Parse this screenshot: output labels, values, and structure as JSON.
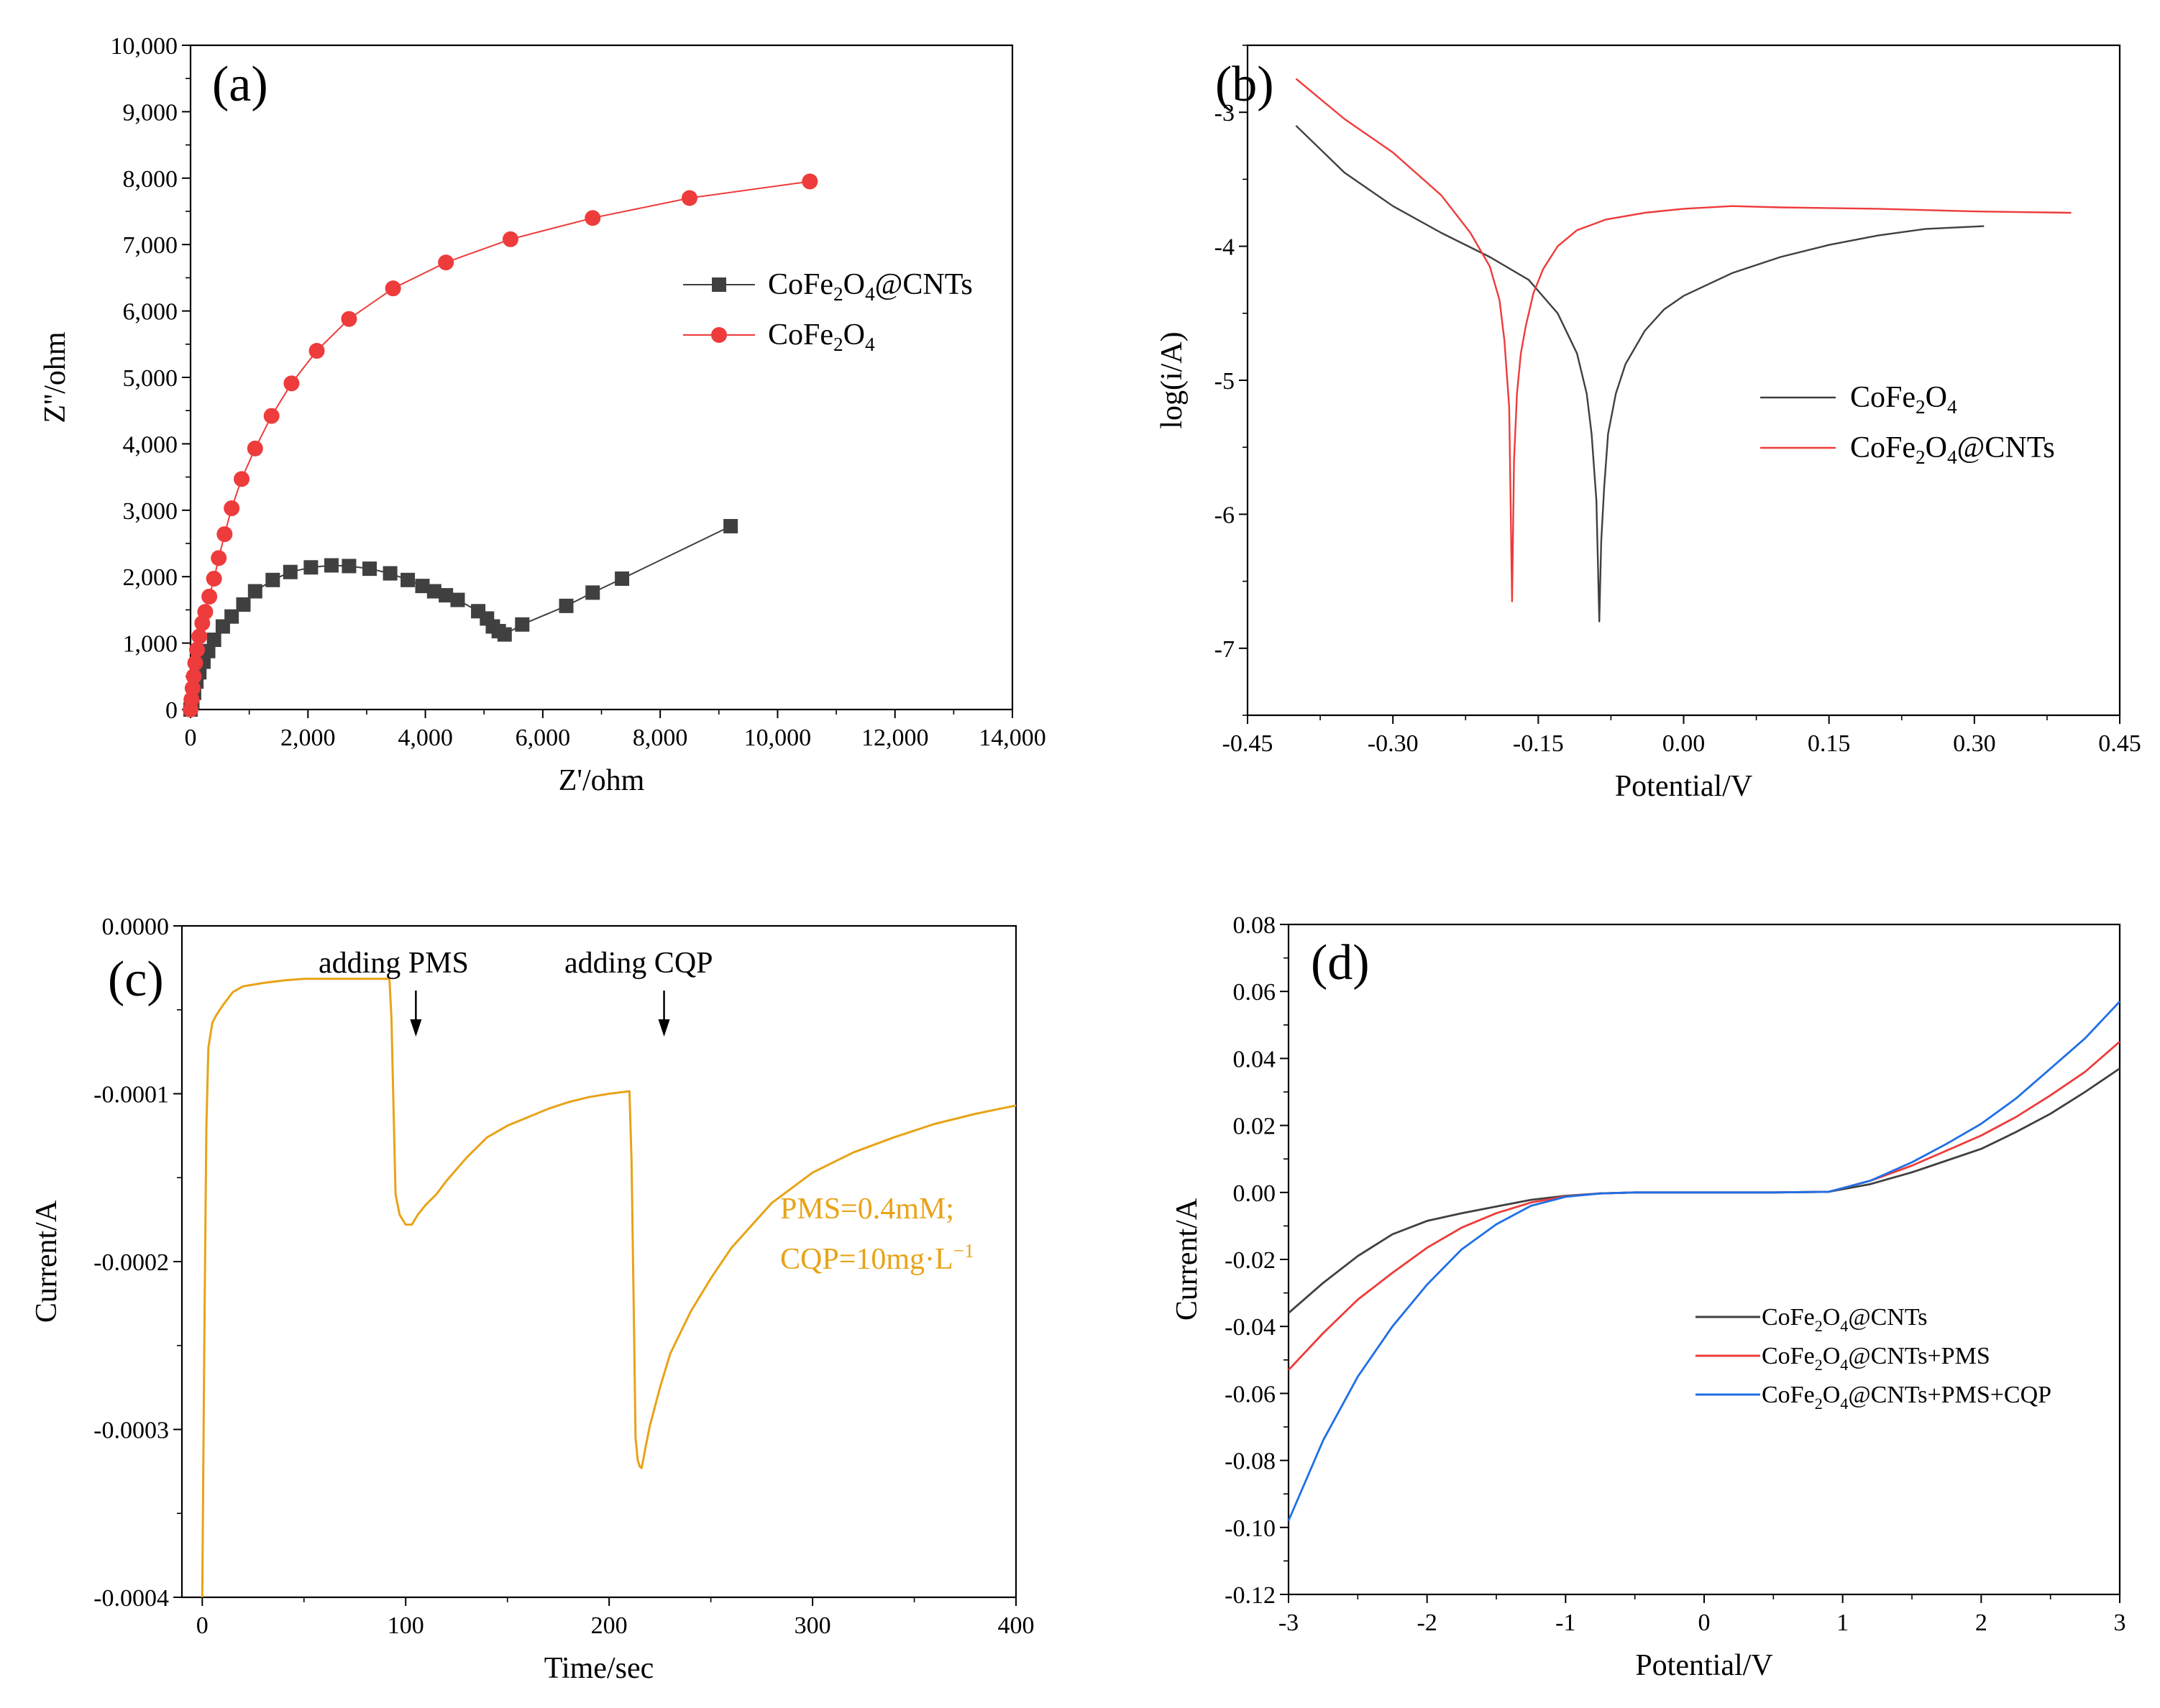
{
  "chart_data": [
    {
      "id": "a",
      "type": "scatter",
      "panel_label": "(a)",
      "xlabel": "Z'/ohm",
      "ylabel": "Z''/ohm",
      "xlim": [
        0,
        14000
      ],
      "ylim": [
        0,
        10000
      ],
      "x_ticks": [
        "0",
        "2,000",
        "4,000",
        "6,000",
        "8,000",
        "10,000",
        "12,000",
        "14,000"
      ],
      "y_ticks": [
        "0",
        "1,000",
        "2,000",
        "3,000",
        "4,000",
        "5,000",
        "6,000",
        "7,000",
        "8,000",
        "9,000",
        "10,000"
      ],
      "legend_position": "upper-right",
      "series": [
        {
          "name": "CoFe2O4@CNTs",
          "legend_main": "CoFe",
          "legend_sub1": "2",
          "legend_mid": "O",
          "legend_sub2": "4",
          "legend_tail": "@CNTs",
          "color": "#404040",
          "marker": "square",
          "x": [
            0,
            30,
            60,
            100,
            150,
            220,
            300,
            400,
            550,
            700,
            900,
            1100,
            1400,
            1700,
            2050,
            2400,
            2700,
            3050,
            3400,
            3700,
            3950,
            4150,
            4350,
            4550,
            4900,
            5050,
            5150,
            5250,
            5350,
            5650,
            6400,
            6850,
            7350,
            9200
          ],
          "y": [
            0,
            120,
            250,
            420,
            560,
            720,
            880,
            1050,
            1250,
            1400,
            1580,
            1780,
            1950,
            2070,
            2140,
            2170,
            2160,
            2120,
            2050,
            1950,
            1860,
            1780,
            1720,
            1650,
            1480,
            1370,
            1250,
            1180,
            1130,
            1280,
            1560,
            1760,
            1970,
            2760
          ]
        },
        {
          "name": "CoFe2O4",
          "legend_main": "CoFe",
          "legend_sub1": "2",
          "legend_mid": "O",
          "legend_sub2": "4",
          "legend_tail": "",
          "color": "#EE3B3B",
          "marker": "circle",
          "x": [
            0,
            15,
            35,
            55,
            80,
            110,
            150,
            200,
            250,
            320,
            400,
            480,
            580,
            700,
            870,
            1100,
            1380,
            1720,
            2150,
            2700,
            3450,
            4350,
            5450,
            6850,
            8500,
            10550
          ],
          "y": [
            0,
            150,
            320,
            500,
            700,
            900,
            1100,
            1300,
            1470,
            1700,
            1970,
            2280,
            2640,
            3030,
            3470,
            3930,
            4420,
            4910,
            5400,
            5880,
            6340,
            6730,
            7080,
            7400,
            7700,
            7950
          ]
        }
      ]
    },
    {
      "id": "b",
      "type": "line",
      "panel_label": "(b)",
      "xlabel": "Potential/V",
      "ylabel": "log(i/A)",
      "xlim": [
        -0.45,
        0.45
      ],
      "ylim": [
        -7.5,
        -2.5
      ],
      "x_ticks": [
        "-0.45",
        "-0.30",
        "-0.15",
        "0.00",
        "0.15",
        "0.30",
        "0.45"
      ],
      "y_ticks": [
        "-3",
        "-4",
        "-5",
        "-6",
        "-7"
      ],
      "legend_position": "right",
      "series": [
        {
          "name": "CoFe2O4",
          "legend_main": "CoFe",
          "legend_sub1": "2",
          "legend_mid": "O",
          "legend_sub2": "4",
          "legend_tail": "",
          "color": "#404040",
          "x": [
            -0.4,
            -0.35,
            -0.3,
            -0.25,
            -0.2,
            -0.16,
            -0.13,
            -0.11,
            -0.1,
            -0.095,
            -0.09,
            -0.087,
            -0.085,
            -0.082,
            -0.078,
            -0.07,
            -0.06,
            -0.04,
            -0.02,
            0.0,
            0.05,
            0.1,
            0.15,
            0.2,
            0.25,
            0.31
          ],
          "y": [
            -3.1,
            -3.45,
            -3.7,
            -3.9,
            -4.08,
            -4.25,
            -4.5,
            -4.8,
            -5.1,
            -5.4,
            -5.9,
            -6.8,
            -6.2,
            -5.8,
            -5.4,
            -5.1,
            -4.88,
            -4.63,
            -4.47,
            -4.37,
            -4.2,
            -4.08,
            -3.99,
            -3.92,
            -3.87,
            -3.85
          ]
        },
        {
          "name": "CoFe2O4@CNTs",
          "legend_main": "CoFe",
          "legend_sub1": "2",
          "legend_mid": "O",
          "legend_sub2": "4",
          "legend_tail": "@CNTs",
          "color": "#EE3B3B",
          "x": [
            -0.4,
            -0.35,
            -0.3,
            -0.25,
            -0.22,
            -0.2,
            -0.19,
            -0.185,
            -0.18,
            -0.177,
            -0.175,
            -0.172,
            -0.168,
            -0.163,
            -0.155,
            -0.145,
            -0.13,
            -0.11,
            -0.08,
            -0.04,
            0.0,
            0.05,
            0.1,
            0.2,
            0.3,
            0.4
          ],
          "y": [
            -2.75,
            -3.05,
            -3.3,
            -3.62,
            -3.9,
            -4.15,
            -4.4,
            -4.7,
            -5.2,
            -6.65,
            -5.6,
            -5.1,
            -4.8,
            -4.6,
            -4.35,
            -4.17,
            -4.0,
            -3.88,
            -3.8,
            -3.75,
            -3.72,
            -3.7,
            -3.71,
            -3.72,
            -3.74,
            -3.75
          ]
        }
      ]
    },
    {
      "id": "c",
      "type": "line",
      "panel_label": "(c)",
      "xlabel": "Time/sec",
      "ylabel": "Current/A",
      "xlim": [
        -10,
        400
      ],
      "ylim": [
        -0.0004,
        0.0
      ],
      "x_ticks": [
        "0",
        "100",
        "200",
        "300",
        "400"
      ],
      "y_ticks": [
        "0.0000",
        "-0.0001",
        "-0.0002",
        "-0.0003",
        "-0.0004"
      ],
      "annotations": {
        "pms_label": "adding PMS",
        "cqp_label": "adding CQP",
        "pms_arrow_x": 105,
        "cqp_arrow_x": 227,
        "cond_line1": "PMS=0.4mM;",
        "cond_line2_main": "CQP=10mg·L",
        "cond_line2_sup": "−1"
      },
      "series": [
        {
          "name": "current",
          "color": "#E8A317",
          "x": [
            0,
            1,
            2,
            3,
            5,
            7,
            10,
            15,
            20,
            30,
            40,
            50,
            60,
            70,
            80,
            92,
            93,
            95,
            97,
            100,
            103,
            106,
            110,
            115,
            120,
            130,
            140,
            150,
            160,
            170,
            180,
            190,
            200,
            210,
            211,
            212,
            213,
            214,
            215,
            216,
            218,
            220,
            225,
            230,
            240,
            250,
            260,
            280,
            300,
            320,
            340,
            360,
            380,
            400
          ],
          "y": [
            -0.0004,
            -0.00025,
            -0.00012,
            -7.25e-05,
            -5.75e-05,
            -5.3e-05,
            -4.75e-05,
            -3.95e-05,
            -3.6e-05,
            -3.4e-05,
            -3.25e-05,
            -3.15e-05,
            -3.15e-05,
            -3.15e-05,
            -3.15e-05,
            -3.15e-05,
            -5.5e-05,
            -0.00016,
            -0.000172,
            -0.000178,
            -0.000178,
            -0.000172,
            -0.000166,
            -0.00016,
            -0.000152,
            -0.000138,
            -0.000126,
            -0.000119,
            -0.000114,
            -0.000109,
            -0.000105,
            -0.000102,
            -0.0001,
            -9.85e-05,
            -0.00014,
            -0.00022,
            -0.000305,
            -0.000318,
            -0.000322,
            -0.000323,
            -0.00031,
            -0.000298,
            -0.000275,
            -0.000255,
            -0.00023,
            -0.00021,
            -0.000192,
            -0.000165,
            -0.000147,
            -0.000135,
            -0.000126,
            -0.000118,
            -0.000112,
            -0.000107
          ]
        }
      ]
    },
    {
      "id": "d",
      "type": "line",
      "panel_label": "(d)",
      "xlabel": "Potential/V",
      "ylabel": "Current/A",
      "xlim": [
        -3,
        3
      ],
      "ylim": [
        -0.12,
        0.08
      ],
      "x_ticks": [
        "-3",
        "-2",
        "-1",
        "0",
        "1",
        "2",
        "3"
      ],
      "y_ticks": [
        "0.08",
        "0.06",
        "0.04",
        "0.02",
        "0.00",
        "-0.02",
        "-0.04",
        "-0.06",
        "-0.08",
        "-0.10",
        "-0.12"
      ],
      "legend_position": "lower-right",
      "series": [
        {
          "name": "CoFe2O4@CNTs",
          "legend_main": "CoFe",
          "legend_sub1": "2",
          "legend_mid": "O",
          "legend_sub2": "4",
          "legend_tail": "@CNTs",
          "color": "#404040",
          "x": [
            -3,
            -2.75,
            -2.5,
            -2.25,
            -2,
            -1.75,
            -1.5,
            -1.25,
            -1,
            -0.75,
            -0.5,
            0,
            0.5,
            0.9,
            1.2,
            1.5,
            1.75,
            2,
            2.25,
            2.5,
            2.75,
            3
          ],
          "y": [
            -0.036,
            -0.027,
            -0.019,
            -0.0125,
            -0.0085,
            -0.0062,
            -0.0042,
            -0.0022,
            -0.001,
            -0.0003,
            0,
            0,
            0,
            0.0002,
            0.0025,
            0.006,
            0.0095,
            0.013,
            0.018,
            0.0235,
            0.03,
            0.037
          ]
        },
        {
          "name": "CoFe2O4@CNTs+PMS",
          "legend_main": "CoFe",
          "legend_sub1": "2",
          "legend_mid": "O",
          "legend_sub2": "4",
          "legend_tail": "@CNTs+PMS",
          "color": "#EE3B3B",
          "x": [
            -3,
            -2.75,
            -2.5,
            -2.25,
            -2,
            -1.75,
            -1.5,
            -1.25,
            -1,
            -0.75,
            -0.5,
            0,
            0.5,
            0.9,
            1.2,
            1.5,
            1.75,
            2,
            2.25,
            2.5,
            2.75,
            3
          ],
          "y": [
            -0.053,
            -0.042,
            -0.032,
            -0.024,
            -0.0165,
            -0.0105,
            -0.0062,
            -0.003,
            -0.0012,
            -0.0003,
            0,
            0,
            0,
            0.0002,
            0.0035,
            0.008,
            0.0125,
            0.017,
            0.0225,
            0.029,
            0.036,
            0.045
          ]
        },
        {
          "name": "CoFe2O4@CNTs+PMS+CQP",
          "legend_main": "CoFe",
          "legend_sub1": "2",
          "legend_mid": "O",
          "legend_sub2": "4",
          "legend_tail": "@CNTs+PMS+CQP",
          "color": "#1F6FE5",
          "x": [
            -3,
            -2.75,
            -2.5,
            -2.25,
            -2,
            -1.75,
            -1.5,
            -1.25,
            -1,
            -0.75,
            -0.5,
            0,
            0.5,
            0.9,
            1.2,
            1.5,
            1.75,
            2,
            2.25,
            2.5,
            2.75,
            3
          ],
          "y": [
            -0.098,
            -0.074,
            -0.055,
            -0.04,
            -0.0275,
            -0.017,
            -0.0095,
            -0.004,
            -0.0013,
            -0.0003,
            0,
            0,
            0,
            0.0002,
            0.0035,
            0.009,
            0.0145,
            0.0205,
            0.028,
            0.037,
            0.046,
            0.057
          ]
        }
      ]
    }
  ]
}
